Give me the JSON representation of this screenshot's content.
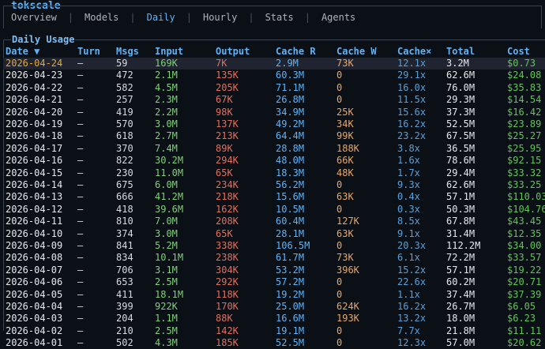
{
  "app": {
    "title": "tokscale"
  },
  "tabs": [
    {
      "label": "Overview",
      "active": false
    },
    {
      "label": "Models",
      "active": false
    },
    {
      "label": "Daily",
      "active": true
    },
    {
      "label": "Hourly",
      "active": false
    },
    {
      "label": "Stats",
      "active": false
    },
    {
      "label": "Agents",
      "active": false
    }
  ],
  "panel": {
    "title": "Daily Usage"
  },
  "table": {
    "columns": [
      "Date ▼",
      "Turn",
      "Msgs",
      "Input",
      "Output",
      "Cache R",
      "Cache W",
      "Cache×",
      "Total",
      "Cost"
    ],
    "selected_index": 0,
    "rows": [
      [
        "2026-04-24",
        "—",
        "59",
        "169K",
        "7K",
        "2.9M",
        "73K",
        "12.1x",
        "3.2M",
        "$0.73"
      ],
      [
        "2026-04-23",
        "—",
        "472",
        "2.1M",
        "135K",
        "60.3M",
        "0",
        "29.1x",
        "62.6M",
        "$24.08"
      ],
      [
        "2026-04-22",
        "—",
        "582",
        "4.5M",
        "205K",
        "71.1M",
        "0",
        "16.0x",
        "76.0M",
        "$35.83"
      ],
      [
        "2026-04-21",
        "—",
        "257",
        "2.3M",
        "67K",
        "26.8M",
        "0",
        "11.5x",
        "29.3M",
        "$14.54"
      ],
      [
        "2026-04-20",
        "—",
        "419",
        "2.2M",
        "98K",
        "34.9M",
        "25K",
        "15.6x",
        "37.3M",
        "$16.42"
      ],
      [
        "2026-04-19",
        "—",
        "570",
        "3.0M",
        "137K",
        "49.2M",
        "34K",
        "16.2x",
        "52.5M",
        "$23.89"
      ],
      [
        "2026-04-18",
        "—",
        "618",
        "2.7M",
        "213K",
        "64.4M",
        "99K",
        "23.2x",
        "67.5M",
        "$25.27"
      ],
      [
        "2026-04-17",
        "—",
        "370",
        "7.4M",
        "89K",
        "28.8M",
        "188K",
        "3.8x",
        "36.5M",
        "$25.95"
      ],
      [
        "2026-04-16",
        "—",
        "822",
        "30.2M",
        "294K",
        "48.0M",
        "66K",
        "1.6x",
        "78.6M",
        "$92.15"
      ],
      [
        "2026-04-15",
        "—",
        "230",
        "11.0M",
        "65K",
        "18.3M",
        "48K",
        "1.7x",
        "29.4M",
        "$33.32"
      ],
      [
        "2026-04-14",
        "—",
        "675",
        "6.0M",
        "234K",
        "56.2M",
        "0",
        "9.3x",
        "62.6M",
        "$33.25"
      ],
      [
        "2026-04-13",
        "—",
        "666",
        "41.2M",
        "218K",
        "15.6M",
        "63K",
        "0.4x",
        "57.1M",
        "$110.03"
      ],
      [
        "2026-04-12",
        "—",
        "418",
        "39.6M",
        "162K",
        "10.5M",
        "0",
        "0.3x",
        "50.3M",
        "$104.76"
      ],
      [
        "2026-04-11",
        "—",
        "810",
        "7.0M",
        "208K",
        "60.4M",
        "127K",
        "8.5x",
        "67.8M",
        "$43.45"
      ],
      [
        "2026-04-10",
        "—",
        "374",
        "3.0M",
        "65K",
        "28.1M",
        "63K",
        "9.1x",
        "31.4M",
        "$12.35"
      ],
      [
        "2026-04-09",
        "—",
        "841",
        "5.2M",
        "338K",
        "106.5M",
        "0",
        "20.3x",
        "112.2M",
        "$34.00"
      ],
      [
        "2026-04-08",
        "—",
        "834",
        "10.1M",
        "238K",
        "61.7M",
        "73K",
        "6.1x",
        "72.2M",
        "$33.57"
      ],
      [
        "2026-04-07",
        "—",
        "706",
        "3.1M",
        "304K",
        "53.2M",
        "396K",
        "15.2x",
        "57.1M",
        "$19.22"
      ],
      [
        "2026-04-06",
        "—",
        "653",
        "2.5M",
        "292K",
        "57.2M",
        "0",
        "22.6x",
        "60.2M",
        "$20.71"
      ],
      [
        "2026-04-05",
        "—",
        "411",
        "18.1M",
        "118K",
        "19.2M",
        "0",
        "1.1x",
        "37.4M",
        "$37.39"
      ],
      [
        "2026-04-04",
        "—",
        "399",
        "922K",
        "170K",
        "25.0M",
        "624K",
        "16.2x",
        "26.7M",
        "$6.05"
      ],
      [
        "2026-04-03",
        "—",
        "204",
        "1.1M",
        "88K",
        "16.6M",
        "193K",
        "13.2x",
        "18.0M",
        "$6.23"
      ],
      [
        "2026-04-02",
        "—",
        "210",
        "2.5M",
        "142K",
        "19.1M",
        "0",
        "7.7x",
        "21.8M",
        "$11.11"
      ],
      [
        "2026-04-01",
        "—",
        "502",
        "4.3M",
        "185K",
        "52.5M",
        "0",
        "12.3x",
        "57.0M",
        "$20.62"
      ]
    ]
  }
}
